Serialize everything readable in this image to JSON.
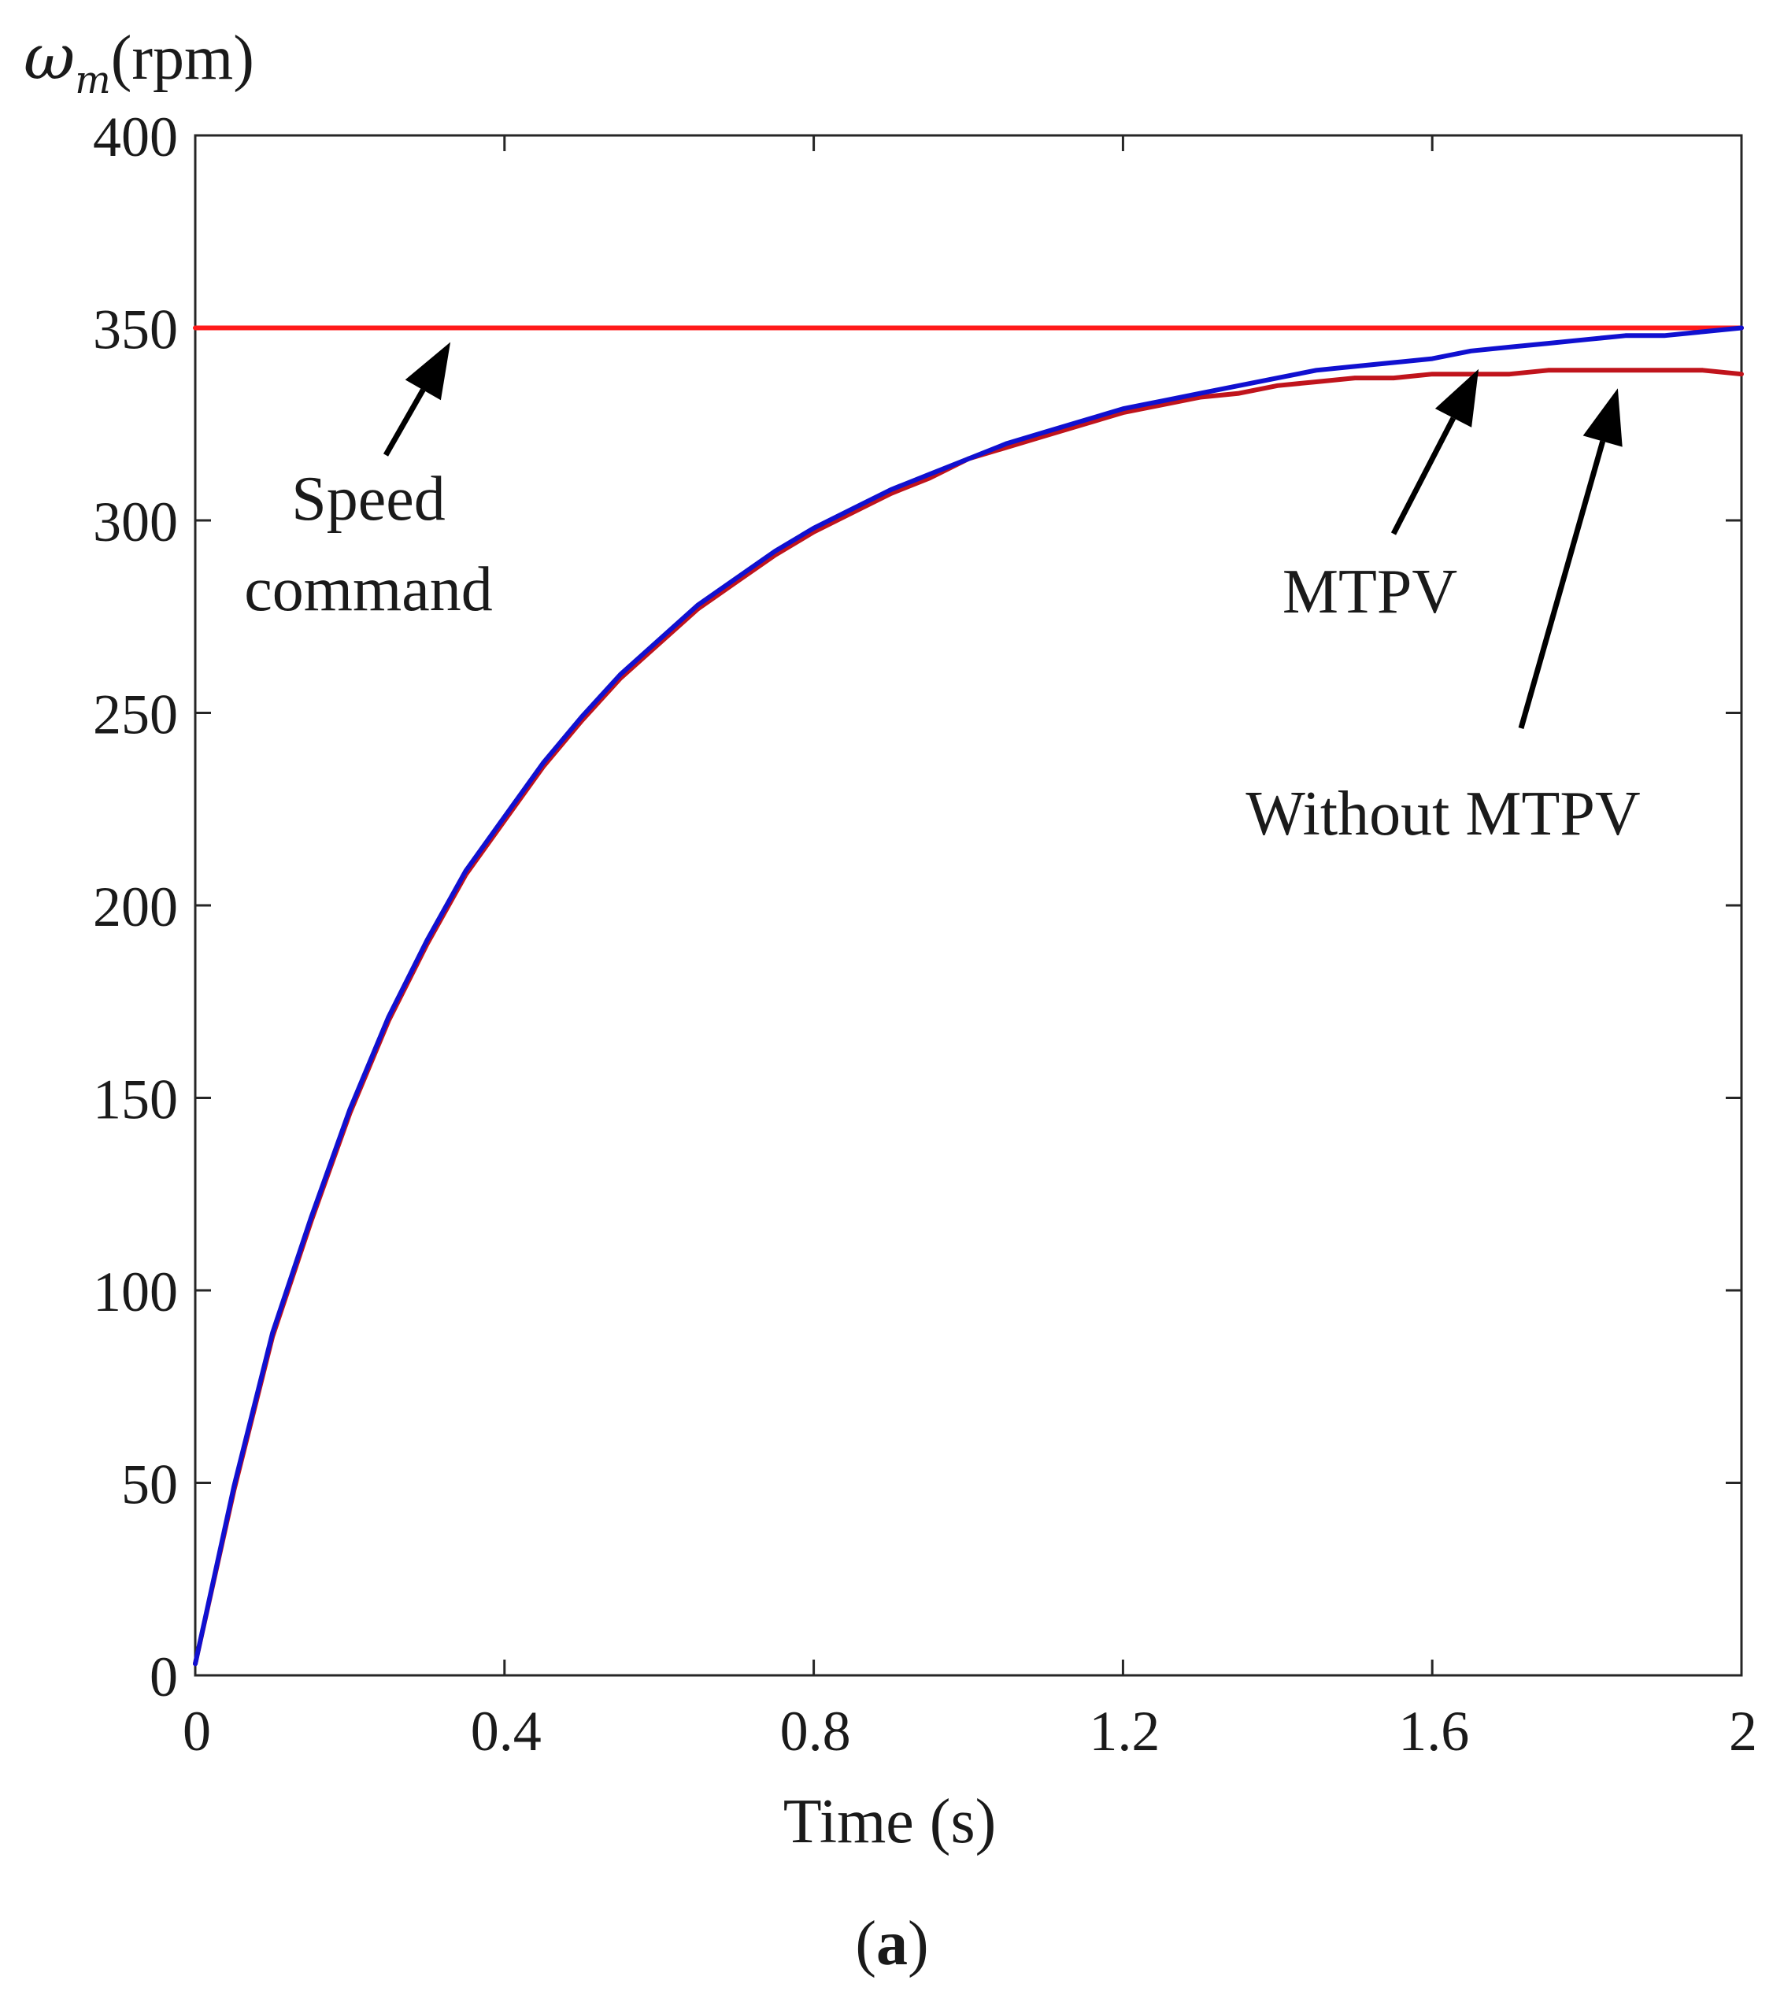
{
  "chart_data": {
    "type": "line",
    "ylabel": {
      "symbol": "ω",
      "subscript": "m",
      "unit": "(rpm)"
    },
    "xlabel": "Time (s)",
    "caption_letter": "a",
    "xlim": [
      0,
      2
    ],
    "ylim": [
      0,
      400
    ],
    "xticks": [
      0,
      0.4,
      0.8,
      1.2,
      1.6,
      2
    ],
    "xtick_labels": [
      "0",
      "0.4",
      "0.8",
      "1.2",
      "1.6",
      "2"
    ],
    "yticks": [
      0,
      50,
      100,
      150,
      200,
      250,
      300,
      350,
      400
    ],
    "ytick_labels": [
      "0",
      "50",
      "100",
      "150",
      "200",
      "250",
      "300",
      "350",
      "400"
    ],
    "grid": false,
    "series": [
      {
        "key": "command",
        "color": "#ff1a1a",
        "x": [
          0,
          2
        ],
        "y": [
          350,
          350
        ]
      },
      {
        "key": "without_mtpv",
        "color": "#c0141c",
        "x": [
          0,
          0.05,
          0.1,
          0.15,
          0.2,
          0.25,
          0.3,
          0.35,
          0.4,
          0.45,
          0.5,
          0.55,
          0.6,
          0.65,
          0.7,
          0.75,
          0.8,
          0.85,
          0.9,
          0.95,
          1.0,
          1.05,
          1.1,
          1.15,
          1.2,
          1.25,
          1.3,
          1.35,
          1.4,
          1.45,
          1.5,
          1.55,
          1.6,
          1.65,
          1.7,
          1.75,
          1.8,
          1.85,
          1.9,
          1.95,
          2.0
        ],
        "y": [
          3,
          48,
          88,
          118,
          146,
          170,
          190,
          208,
          222,
          236,
          248,
          259,
          268,
          277,
          284,
          291,
          297,
          302,
          307,
          311,
          316,
          319,
          322,
          325,
          328,
          330,
          332,
          333,
          335,
          336,
          337,
          337,
          338,
          338,
          338,
          339,
          339,
          339,
          339,
          339,
          338
        ]
      },
      {
        "key": "mtpv",
        "color": "#1010d0",
        "x": [
          0,
          0.05,
          0.1,
          0.15,
          0.2,
          0.25,
          0.3,
          0.35,
          0.4,
          0.45,
          0.5,
          0.55,
          0.6,
          0.65,
          0.7,
          0.75,
          0.8,
          0.85,
          0.9,
          0.95,
          1.0,
          1.05,
          1.1,
          1.15,
          1.2,
          1.25,
          1.3,
          1.35,
          1.4,
          1.45,
          1.5,
          1.55,
          1.6,
          1.65,
          1.7,
          1.75,
          1.8,
          1.85,
          1.9,
          1.95,
          2.0
        ],
        "y": [
          3,
          49,
          89,
          119,
          147,
          171,
          191,
          209,
          223,
          237,
          249,
          260,
          269,
          278,
          285,
          292,
          298,
          303,
          308,
          312,
          316,
          320,
          323,
          326,
          329,
          331,
          333,
          335,
          337,
          339,
          340,
          341,
          342,
          344,
          345,
          346,
          347,
          348,
          348,
          349,
          350
        ]
      }
    ],
    "annotations": [
      {
        "key": "command",
        "lines": [
          "Speed",
          "command"
        ],
        "point_x": 0.33,
        "point_y": 350
      },
      {
        "key": "mtpv",
        "lines": [
          "MTPV"
        ],
        "point_x": 1.66,
        "point_y": 343
      },
      {
        "key": "without_mtpv",
        "lines": [
          "Without MTPV"
        ],
        "point_x": 1.84,
        "point_y": 338
      }
    ]
  }
}
